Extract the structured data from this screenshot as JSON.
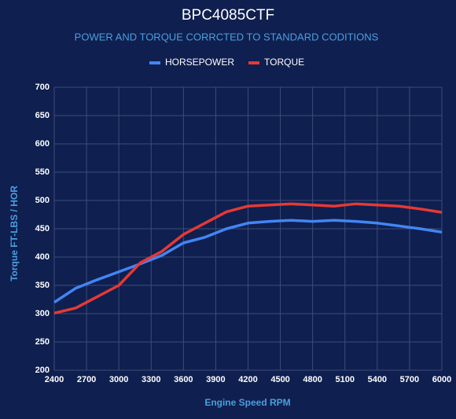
{
  "chart_data": {
    "type": "line",
    "title": "BPC4085CTF",
    "subtitle": "POWER AND TORQUE CORRCTED TO STANDARD CODITIONS",
    "x_label": "Engine Speed RPM",
    "y_label": "Torque FT-LBS / HOR",
    "x": [
      2400,
      2600,
      2800,
      3000,
      3200,
      3400,
      3600,
      3800,
      4000,
      4200,
      4400,
      4600,
      4800,
      5000,
      5200,
      5400,
      5600,
      5800,
      6000
    ],
    "series": [
      {
        "name": "HORSEPOWER",
        "color": "#4285f4",
        "values": [
          320,
          345,
          360,
          374,
          388,
          403,
          425,
          435,
          450,
          460,
          463,
          465,
          463,
          465,
          463,
          460,
          455,
          450,
          444
        ]
      },
      {
        "name": "TORQUE",
        "color": "#e53935",
        "values": [
          301,
          310,
          330,
          350,
          390,
          410,
          440,
          460,
          480,
          490,
          492,
          494,
          492,
          490,
          494,
          492,
          490,
          485,
          479
        ]
      }
    ],
    "xlim": [
      2400,
      6000
    ],
    "xticks": [
      2400,
      2700,
      3000,
      3300,
      3600,
      3900,
      4200,
      4500,
      4800,
      5100,
      5400,
      5700,
      6000
    ],
    "ylim": [
      200,
      700
    ],
    "yticks": [
      200,
      250,
      300,
      350,
      400,
      450,
      500,
      550,
      600,
      650,
      700
    ],
    "grid": true,
    "legend": "top"
  }
}
